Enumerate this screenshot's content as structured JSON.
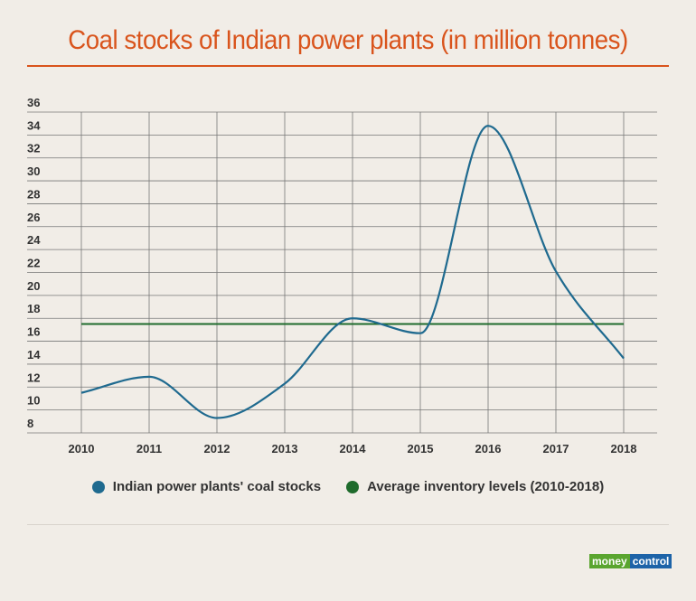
{
  "chart_data": {
    "type": "line",
    "title": "Coal stocks of Indian power plants (in million tonnes)",
    "xlabel": "",
    "ylabel": "",
    "x": [
      "2010",
      "2011",
      "2012",
      "2013",
      "2014",
      "2015",
      "2016",
      "2017",
      "2018"
    ],
    "ylim": [
      8,
      36
    ],
    "yticks": [
      8,
      10,
      12,
      14,
      16,
      18,
      20,
      22,
      24,
      26,
      28,
      30,
      32,
      34,
      36
    ],
    "grid": true,
    "legend_position": "bottom",
    "series": [
      {
        "name": "Indian power plants' coal stocks",
        "color": "#1f6a8f",
        "values": [
          11.5,
          12.9,
          9.3,
          12.3,
          18.0,
          16.7,
          34.8,
          22.1,
          14.5
        ]
      },
      {
        "name": "Average inventory levels (2010-2018)",
        "color": "#1f6b2c",
        "values": [
          17.5,
          17.5,
          17.5,
          17.5,
          17.5,
          17.5,
          17.5,
          17.5,
          17.5
        ]
      }
    ]
  },
  "branding": {
    "logo_text": "moneycontrol",
    "logo_part1": "money",
    "logo_part2": "control"
  }
}
